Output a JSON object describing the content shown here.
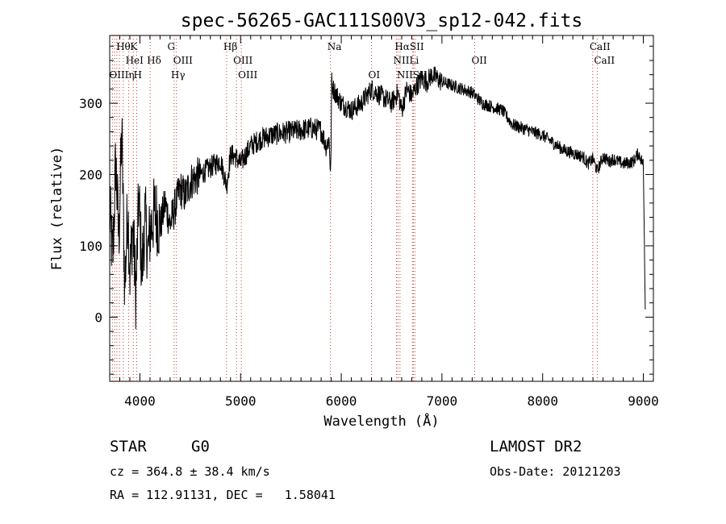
{
  "chart_data": {
    "type": "line",
    "title": "spec-56265-GAC111S00V3_sp12-042.fits",
    "xlabel": "Wavelength (Å)",
    "ylabel": "Flux (relative)",
    "xlim": [
      3700,
      9100
    ],
    "ylim": [
      -90,
      395
    ],
    "xticks": [
      4000,
      5000,
      6000,
      7000,
      8000,
      9000
    ],
    "xtick_labels": [
      "4000",
      "5000",
      "6000",
      "7000",
      "8000",
      "9000"
    ],
    "yticks": [
      0,
      100,
      200,
      300
    ],
    "ytick_labels": [
      "0",
      "100",
      "200",
      "300"
    ],
    "grid": false,
    "legend": "none",
    "series": [
      {
        "x": [
          3700,
          3730,
          3760,
          3790,
          3820,
          3850,
          3880,
          3900,
          3930,
          3960,
          3990,
          4020,
          4050,
          4080,
          4100,
          4150,
          4200,
          4250,
          4300,
          4340,
          4400,
          4450,
          4500,
          4550,
          4600,
          4650,
          4700,
          4750,
          4800,
          4861,
          4900,
          4950,
          5000,
          5100,
          5200,
          5300,
          5400,
          5500,
          5600,
          5700,
          5800,
          5850,
          5880,
          5895,
          5905,
          5920,
          5960,
          6000,
          6100,
          6200,
          6300,
          6400,
          6500,
          6563,
          6600,
          6650,
          6700,
          6750,
          6800,
          6850,
          6900,
          6950,
          7000,
          7100,
          7200,
          7300,
          7400,
          7500,
          7600,
          7650,
          7700,
          7800,
          7900,
          8000,
          8100,
          8200,
          8300,
          8400,
          8450,
          8500,
          8542,
          8600,
          8662,
          8700,
          8800,
          8900,
          8950,
          9000,
          9020
        ],
        "y": [
          150,
          80,
          220,
          110,
          260,
          40,
          160,
          60,
          130,
          30,
          170,
          60,
          140,
          90,
          120,
          150,
          125,
          160,
          130,
          150,
          180,
          170,
          190,
          195,
          200,
          205,
          210,
          215,
          220,
          185,
          228,
          225,
          215,
          240,
          250,
          255,
          258,
          260,
          262,
          265,
          262,
          240,
          250,
          195,
          330,
          320,
          310,
          300,
          290,
          300,
          320,
          310,
          300,
          315,
          290,
          320,
          310,
          325,
          335,
          330,
          340,
          335,
          330,
          325,
          320,
          315,
          300,
          295,
          290,
          280,
          270,
          265,
          260,
          255,
          245,
          235,
          230,
          225,
          215,
          222,
          205,
          225,
          218,
          222,
          215,
          218,
          230,
          215,
          0
        ]
      }
    ],
    "line_markers": [
      {
        "label": "Hθ",
        "x": 3797,
        "row": 0
      },
      {
        "label": "K",
        "x": 3934,
        "row": 0
      },
      {
        "label": "G",
        "x": 4305,
        "row": 0
      },
      {
        "label": "Hβ",
        "x": 4861,
        "row": 0
      },
      {
        "label": "Na",
        "x": 5893,
        "row": 0
      },
      {
        "label": "HαSII",
        "x": 6563,
        "row": 0
      },
      {
        "label": "CaII",
        "x": 8498,
        "row": 0
      },
      {
        "label": "HeI",
        "x": 3889,
        "row": 1
      },
      {
        "label": "Hδ",
        "x": 4102,
        "row": 1
      },
      {
        "label": "OIII",
        "x": 4363,
        "row": 1
      },
      {
        "label": "OIII",
        "x": 4959,
        "row": 1
      },
      {
        "label": "NIILi",
        "x": 6548,
        "row": 1
      },
      {
        "label": "OII",
        "x": 7325,
        "row": 1
      },
      {
        "label": "CaII",
        "x": 8542,
        "row": 1
      },
      {
        "label": "OIIIη",
        "x": 3727,
        "row": 2
      },
      {
        "label": "H",
        "x": 3968,
        "row": 2
      },
      {
        "label": "Hγ",
        "x": 4340,
        "row": 2
      },
      {
        "label": "OIII",
        "x": 5007,
        "row": 2
      },
      {
        "label": "OI",
        "x": 6300,
        "row": 2
      },
      {
        "label": "NIISII",
        "x": 6583,
        "row": 2
      }
    ],
    "dotted_lines_x": [
      3727,
      3750,
      3771,
      3797,
      3835,
      3889,
      3934,
      3968,
      4102,
      4340,
      4363,
      4861,
      4959,
      5007,
      5893,
      6300,
      6548,
      6563,
      6583,
      6707,
      6716,
      6731,
      7325,
      8498,
      8542
    ]
  },
  "info": {
    "object_class": "STAR",
    "subclass": "G0",
    "survey": "LAMOST DR2",
    "cz": "cz = 364.8 ± 38.4 km/s",
    "obs_date": "Obs-Date: 20121203",
    "coords": "RA = 112.91131, DEC =   1.58041"
  }
}
